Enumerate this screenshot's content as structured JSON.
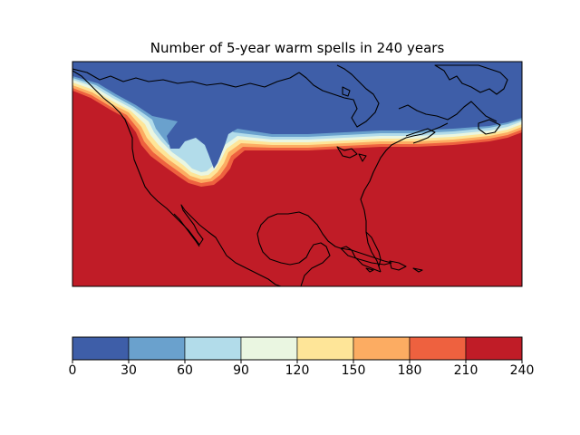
{
  "title": "Number of 5-year warm spells in 240 years",
  "colorbar": {
    "ticks": [
      "0",
      "30",
      "60",
      "90",
      "120",
      "150",
      "180",
      "210",
      "240"
    ],
    "bins": [
      {
        "from": 0,
        "to": 30,
        "color": "#3e5ea8"
      },
      {
        "from": 30,
        "to": 60,
        "color": "#6aa1cd"
      },
      {
        "from": 60,
        "to": 90,
        "color": "#b2dcea"
      },
      {
        "from": 90,
        "to": 120,
        "color": "#eaf6e1"
      },
      {
        "from": 120,
        "to": 150,
        "color": "#fee598"
      },
      {
        "from": 150,
        "to": 180,
        "color": "#fcac62"
      },
      {
        "from": 180,
        "to": 210,
        "color": "#ee613f"
      },
      {
        "from": 210,
        "to": 240,
        "color": "#c01c27"
      }
    ]
  },
  "map": {
    "region": "North America",
    "background_value_color": "#c01c27",
    "north_value_color": "#3e5ea8"
  }
}
